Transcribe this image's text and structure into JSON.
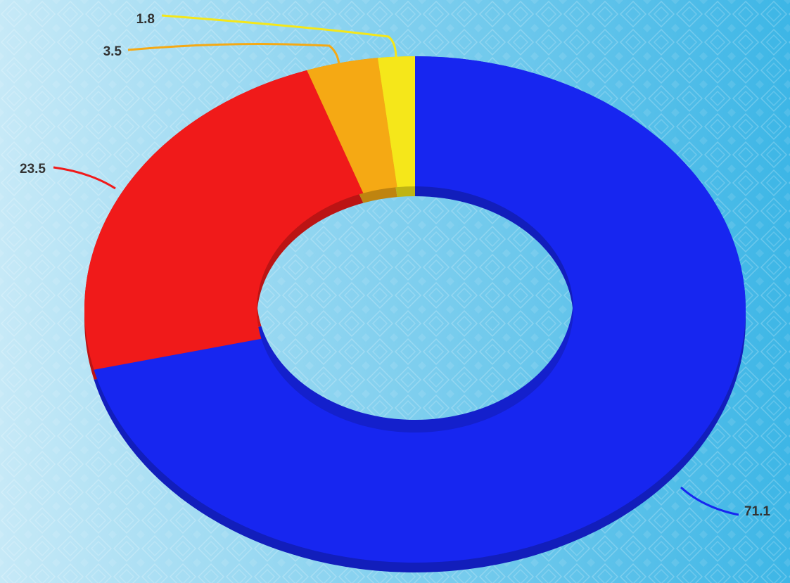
{
  "chart_data": {
    "type": "pie",
    "variant": "donut-3d",
    "title": "",
    "categories": [
      "",
      "",
      "",
      ""
    ],
    "values": [
      71.1,
      23.5,
      3.5,
      1.8
    ],
    "labels": [
      "71.1",
      "23.5",
      "3.5",
      "1.8"
    ],
    "colors": [
      "#1726f0",
      "#f01a1a",
      "#f5a914",
      "#f5e71a"
    ],
    "start": "12 o'clock",
    "direction": "clockwise",
    "legend": "none",
    "labels_position": "outside with leader lines"
  },
  "background": {
    "colors": [
      "#c6e9f7",
      "#3db6e6"
    ],
    "pattern": "diamond-stripes"
  }
}
